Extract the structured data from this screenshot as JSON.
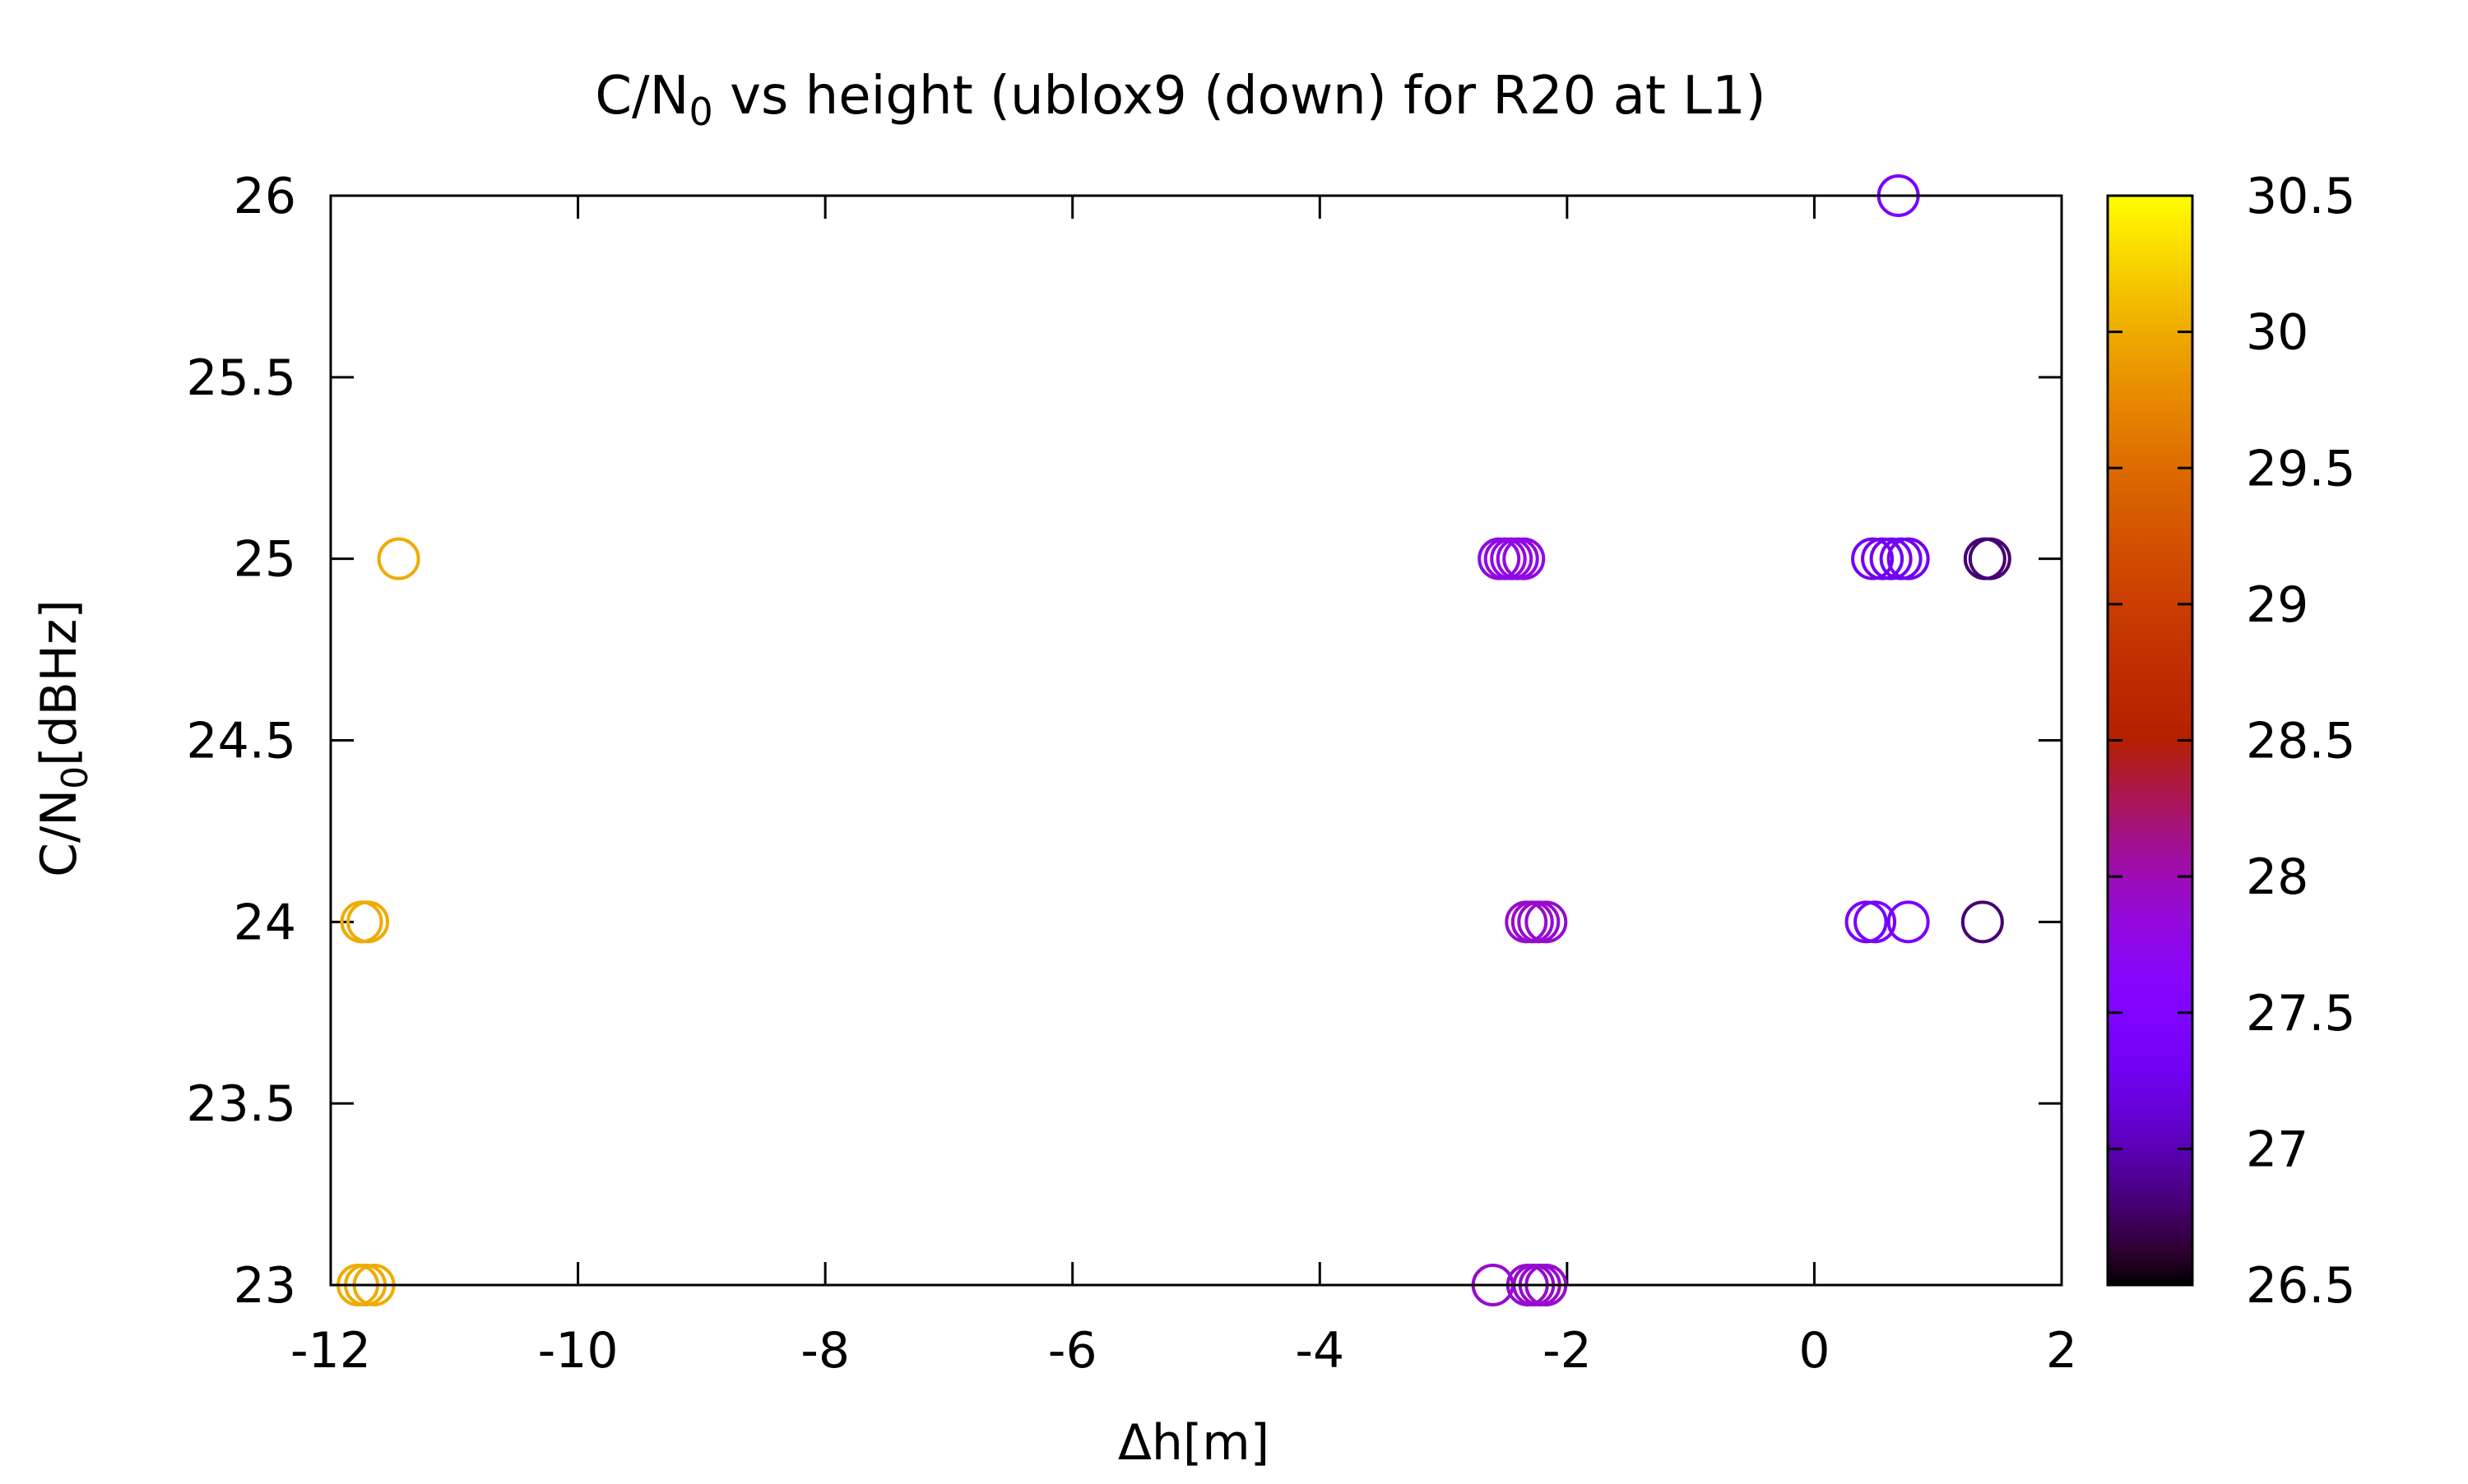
{
  "chart_data": {
    "type": "scatter",
    "title": {
      "prefix": "C/N",
      "sub": "0",
      "suffix": " vs height (ublox9 (down) for R20 at L1)"
    },
    "xlabel": "Δh[m]",
    "ylabel": {
      "prefix": "C/N",
      "sub": "0",
      "suffix": "[dBHz]"
    },
    "xlim": [
      -12,
      2
    ],
    "ylim": [
      23,
      26
    ],
    "xticks": [
      "-12",
      "-10",
      "-8",
      "-6",
      "-4",
      "-2",
      "0",
      "2"
    ],
    "yticks": [
      "23",
      "23.5",
      "24",
      "24.5",
      "25",
      "25.5",
      "26"
    ],
    "colorbar": {
      "range": [
        26.5,
        30.5
      ],
      "ticks": [
        "26.5",
        "27",
        "27.5",
        "28",
        "28.5",
        "29",
        "29.5",
        "30",
        "30.5"
      ],
      "palette": "gnuplot (black-purple-red-orange-yellow)"
    },
    "points": [
      {
        "x": -11.45,
        "y": 25,
        "c": 30.0
      },
      {
        "x": -11.75,
        "y": 24,
        "c": 30.0
      },
      {
        "x": -11.7,
        "y": 24,
        "c": 30.0
      },
      {
        "x": -11.78,
        "y": 23,
        "c": 30.0
      },
      {
        "x": -11.72,
        "y": 23,
        "c": 30.0
      },
      {
        "x": -11.65,
        "y": 23,
        "c": 30.0
      },
      {
        "x": -2.55,
        "y": 25,
        "c": 27.8
      },
      {
        "x": -2.5,
        "y": 25,
        "c": 27.8
      },
      {
        "x": -2.45,
        "y": 25,
        "c": 27.8
      },
      {
        "x": -2.4,
        "y": 25,
        "c": 27.8
      },
      {
        "x": -2.35,
        "y": 25,
        "c": 27.8
      },
      {
        "x": -2.33,
        "y": 24,
        "c": 27.9
      },
      {
        "x": -2.28,
        "y": 24,
        "c": 27.9
      },
      {
        "x": -2.23,
        "y": 24,
        "c": 27.9
      },
      {
        "x": -2.17,
        "y": 24,
        "c": 27.9
      },
      {
        "x": -2.6,
        "y": 23,
        "c": 27.9
      },
      {
        "x": -2.32,
        "y": 23,
        "c": 27.9
      },
      {
        "x": -2.27,
        "y": 23,
        "c": 27.9
      },
      {
        "x": -2.22,
        "y": 23,
        "c": 27.9
      },
      {
        "x": -2.17,
        "y": 23,
        "c": 27.9
      },
      {
        "x": 0.68,
        "y": 26,
        "c": 27.4
      },
      {
        "x": 0.47,
        "y": 25,
        "c": 27.3
      },
      {
        "x": 0.55,
        "y": 25,
        "c": 27.3
      },
      {
        "x": 0.62,
        "y": 25,
        "c": 27.3
      },
      {
        "x": 0.7,
        "y": 25,
        "c": 27.3
      },
      {
        "x": 0.76,
        "y": 25,
        "c": 27.3
      },
      {
        "x": 0.42,
        "y": 24,
        "c": 27.4
      },
      {
        "x": 0.49,
        "y": 24,
        "c": 27.4
      },
      {
        "x": 0.76,
        "y": 24,
        "c": 27.4
      },
      {
        "x": 1.38,
        "y": 25,
        "c": 26.8
      },
      {
        "x": 1.42,
        "y": 25,
        "c": 26.8
      },
      {
        "x": 1.36,
        "y": 24,
        "c": 26.8
      }
    ]
  }
}
